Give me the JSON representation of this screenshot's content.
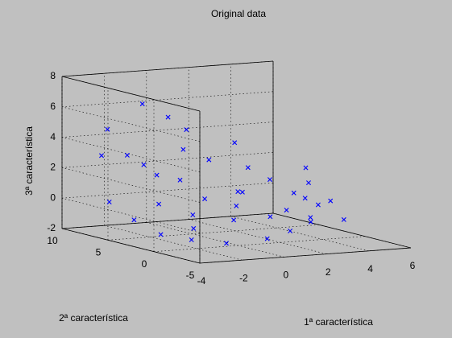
{
  "chart_data": {
    "type": "scatter",
    "title": "Original data",
    "xlabel": "1ª característica",
    "ylabel": "2ª característica",
    "zlabel": "3ª característica",
    "xlim": [
      -4,
      6
    ],
    "ylim": [
      -5,
      10
    ],
    "zlim": [
      -2,
      8
    ],
    "xticks": [
      "-4",
      "-2",
      "0",
      "2",
      "4",
      "6"
    ],
    "yticks": [
      "-5",
      "0",
      "5",
      "10"
    ],
    "zticks": [
      "-2",
      "0",
      "2",
      "4",
      "6",
      "8"
    ],
    "grid": true,
    "marker": "x",
    "color": "#0000ff",
    "points": [
      [
        4.5,
        3.0,
        2.2
      ],
      [
        4.2,
        2.0,
        1.4
      ],
      [
        3.6,
        1.0,
        0.6
      ],
      [
        2.8,
        3.0,
        1.6
      ],
      [
        4.0,
        0.5,
        0.2
      ],
      [
        3.2,
        -0.5,
        -0.4
      ],
      [
        2.0,
        5.0,
        3.8
      ],
      [
        1.5,
        3.0,
        0.9
      ],
      [
        -0.5,
        6.5,
        5.5
      ],
      [
        0.8,
        7.5,
        4.4
      ],
      [
        -1.5,
        7.0,
        6.4
      ],
      [
        -3.0,
        8.0,
        3.0
      ],
      [
        -3.5,
        6.0,
        0.3
      ],
      [
        -3.2,
        4.0,
        -0.6
      ],
      [
        -2.8,
        2.0,
        -1.3
      ],
      [
        -2.0,
        0.5,
        -1.5
      ],
      [
        -1.0,
        -1.0,
        -1.6
      ],
      [
        0.5,
        -2.0,
        -1.3
      ],
      [
        1.8,
        -1.5,
        -1.0
      ],
      [
        3.0,
        -1.0,
        -0.6
      ],
      [
        -2.5,
        8.5,
        4.6
      ],
      [
        -2.0,
        7.5,
        3.0
      ],
      [
        -1.0,
        8.0,
        2.2
      ],
      [
        0.0,
        6.0,
        3.4
      ],
      [
        1.0,
        5.5,
        2.7
      ],
      [
        2.2,
        4.0,
        2.3
      ],
      [
        -0.8,
        4.5,
        1.7
      ],
      [
        -1.6,
        5.2,
        2.0
      ],
      [
        3.5,
        2.0,
        0.8
      ],
      [
        2.5,
        0.5,
        0.0
      ],
      [
        4.8,
        1.0,
        0.3
      ],
      [
        5.0,
        0.0,
        -0.8
      ],
      [
        1.2,
        2.8,
        1.0
      ],
      [
        -0.2,
        3.2,
        0.6
      ],
      [
        0.6,
        1.6,
        0.3
      ],
      [
        -1.2,
        2.2,
        -0.2
      ],
      [
        -2.2,
        3.6,
        0.4
      ],
      [
        0.0,
        0.5,
        -0.4
      ],
      [
        1.6,
        0.2,
        -0.3
      ],
      [
        -1.6,
        1.2,
        -0.9
      ]
    ]
  }
}
